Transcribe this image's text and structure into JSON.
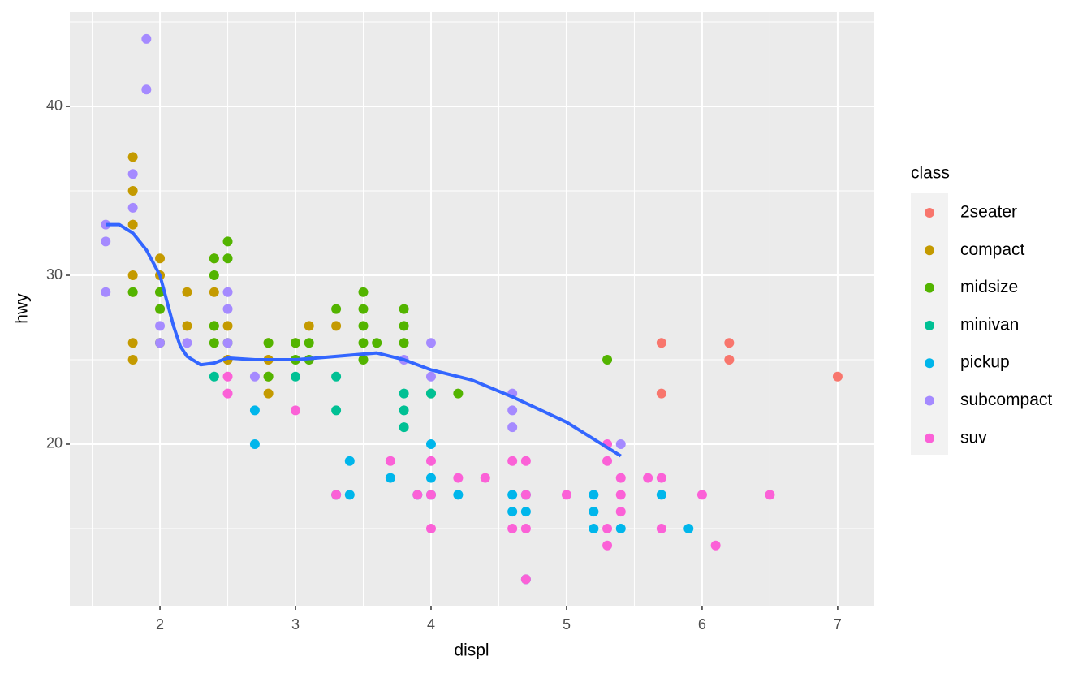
{
  "chart_data": {
    "type": "scatter",
    "xlabel": "displ",
    "ylabel": "hwy",
    "xlim": [
      1.335,
      7.27
    ],
    "ylim": [
      10.43,
      45.58
    ],
    "xticks": [
      2,
      3,
      4,
      5,
      6,
      7
    ],
    "yticks": [
      20,
      30,
      40
    ],
    "minor_xticks": [
      1.5,
      2.5,
      3.5,
      4.5,
      5.5,
      6.5
    ],
    "minor_yticks": [
      15,
      25,
      35,
      45
    ],
    "grid": true,
    "legend_title": "class",
    "legend": "right",
    "series": [
      {
        "name": "2seater",
        "color": "#F8766D",
        "x": [
          5.7,
          5.7,
          6.2,
          6.2,
          7
        ],
        "y": [
          26,
          23,
          26,
          25,
          24
        ]
      },
      {
        "name": "compact",
        "color": "#C49A00",
        "x": [
          1.8,
          1.8,
          1.8,
          1.8,
          1.8,
          1.8,
          1.8,
          2,
          2,
          2,
          2,
          2,
          2.2,
          2.2,
          2.4,
          2.4,
          2.4,
          2.5,
          2.5,
          2.8,
          2.8,
          2.8,
          2.8,
          3,
          3.1,
          3.3
        ],
        "y": [
          37,
          35,
          33,
          30,
          29,
          26,
          25,
          31,
          30,
          29,
          28,
          26,
          29,
          27,
          31,
          29,
          27,
          27,
          25,
          26,
          25,
          24,
          23,
          26,
          27,
          27
        ]
      },
      {
        "name": "midsize",
        "color": "#53B400",
        "x": [
          1.8,
          2,
          2,
          2,
          2.4,
          2.4,
          2.4,
          2.4,
          2.5,
          2.5,
          2.5,
          2.8,
          2.8,
          3,
          3,
          3.1,
          3.1,
          3.3,
          3.5,
          3.5,
          3.5,
          3.5,
          3.5,
          3.6,
          3.8,
          3.8,
          3.8,
          4,
          4.2,
          5.3
        ],
        "y": [
          29,
          29,
          28,
          26,
          31,
          30,
          27,
          26,
          32,
          31,
          26,
          26,
          24,
          26,
          25,
          26,
          25,
          28,
          29,
          28,
          27,
          26,
          25,
          26,
          28,
          27,
          26,
          23,
          23,
          25
        ]
      },
      {
        "name": "minivan",
        "color": "#00C094",
        "x": [
          2.4,
          3,
          3.3,
          3.3,
          3.3,
          3.8,
          3.8,
          3.8,
          4
        ],
        "y": [
          24,
          24,
          24,
          22,
          17,
          23,
          22,
          21,
          23
        ]
      },
      {
        "name": "pickup",
        "color": "#00B6EB",
        "x": [
          2.7,
          2.7,
          3.4,
          3.4,
          3.7,
          3.9,
          4,
          4,
          4,
          4.2,
          4.6,
          4.6,
          4.7,
          4.7,
          4.7,
          5.2,
          5.2,
          5.2,
          5.4,
          5.7,
          5.9
        ],
        "y": [
          22,
          20,
          19,
          17,
          18,
          17,
          20,
          18,
          17,
          17,
          17,
          16,
          17,
          16,
          12,
          17,
          16,
          15,
          15,
          17,
          15
        ]
      },
      {
        "name": "subcompact",
        "color": "#A58AFF",
        "x": [
          1.6,
          1.6,
          1.6,
          1.8,
          1.8,
          1.9,
          1.9,
          2,
          2,
          2.2,
          2.5,
          2.5,
          2.5,
          2.7,
          3.8,
          4,
          4,
          4.6,
          4.6,
          4.6,
          5.4
        ],
        "y": [
          33,
          32,
          29,
          36,
          34,
          44,
          41,
          27,
          26,
          26,
          29,
          28,
          26,
          24,
          25,
          26,
          24,
          23,
          22,
          21,
          20
        ]
      },
      {
        "name": "suv",
        "color": "#FB61D7",
        "x": [
          2.5,
          2.5,
          3,
          3.3,
          3.7,
          3.9,
          4,
          4,
          4,
          4.2,
          4.4,
          4.6,
          4.6,
          4.7,
          4.7,
          4.7,
          4.7,
          5,
          5.3,
          5.3,
          5.3,
          5.3,
          5.4,
          5.4,
          5.4,
          5.6,
          5.7,
          5.7,
          6,
          6.1,
          6.5
        ],
        "y": [
          24,
          23,
          22,
          17,
          19,
          17,
          19,
          17,
          15,
          18,
          18,
          19,
          15,
          19,
          17,
          15,
          12,
          17,
          20,
          19,
          15,
          14,
          18,
          17,
          16,
          18,
          18,
          15,
          17,
          14,
          17
        ]
      }
    ],
    "smooth": {
      "color": "#3366FF",
      "x": [
        1.6,
        1.7,
        1.8,
        1.9,
        2.0,
        2.1,
        2.15,
        2.2,
        2.3,
        2.4,
        2.5,
        2.7,
        3.0,
        3.3,
        3.6,
        3.8,
        4.0,
        4.3,
        4.6,
        5.0,
        5.4
      ],
      "y": [
        33,
        33,
        32.5,
        31.5,
        30,
        27,
        25.8,
        25.2,
        24.7,
        24.8,
        25.1,
        25,
        25,
        25.2,
        25.4,
        25,
        24.4,
        23.8,
        22.8,
        21.3,
        19.3
      ]
    }
  }
}
